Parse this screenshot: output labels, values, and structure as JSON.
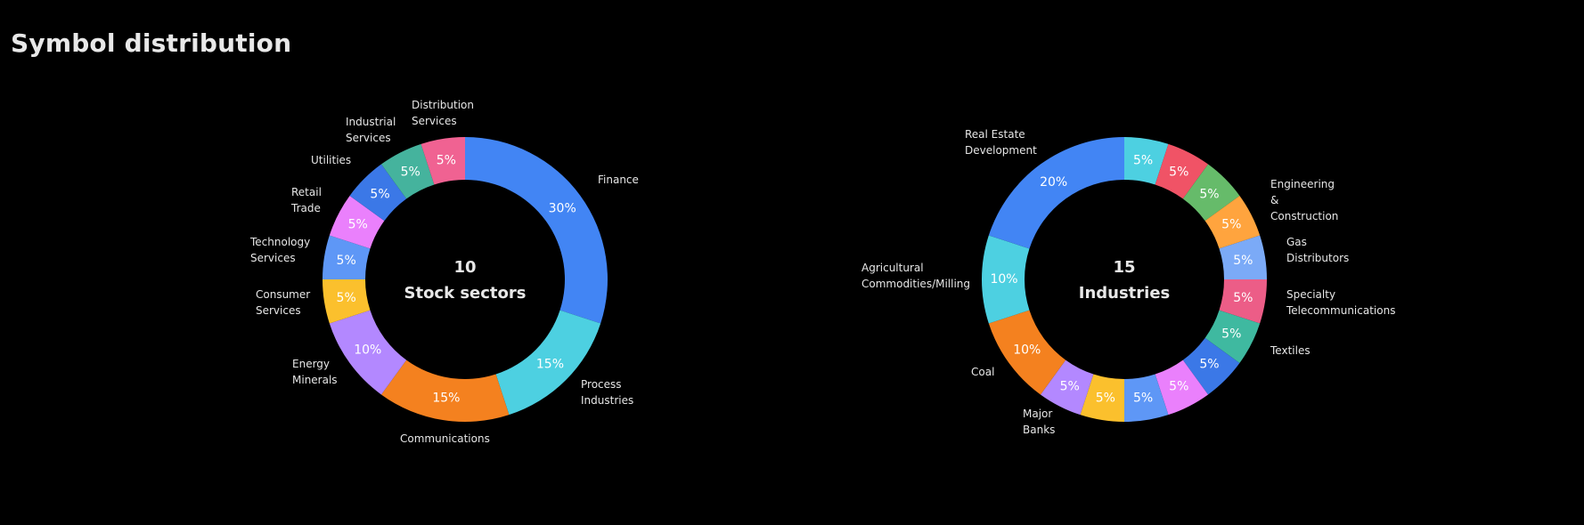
{
  "title": "Symbol distribution",
  "chart_data": [
    {
      "type": "pie",
      "center_count": "10",
      "center_label": "Stock sectors",
      "slices": [
        {
          "label": "Finance",
          "value": 30,
          "text": "30%",
          "color": "#4285f4"
        },
        {
          "label": "Process Industries",
          "value": 15,
          "text": "15%",
          "color": "#4dd0e1"
        },
        {
          "label": "Communications",
          "value": 15,
          "text": "15%",
          "color": "#f4811f"
        },
        {
          "label": "Energy Minerals",
          "value": 10,
          "text": "10%",
          "color": "#b388ff"
        },
        {
          "label": "Consumer Services",
          "value": 5,
          "text": "5%",
          "color": "#fbc02d"
        },
        {
          "label": "Technology Services",
          "value": 5,
          "text": "5%",
          "color": "#5e97f6"
        },
        {
          "label": "Retail Trade",
          "value": 5,
          "text": "5%",
          "color": "#ea80fc"
        },
        {
          "label": "Utilities",
          "value": 5,
          "text": "5%",
          "color": "#3b78e7"
        },
        {
          "label": "Industrial Services",
          "value": 5,
          "text": "5%",
          "color": "#45b39d"
        },
        {
          "label": "Distribution Services",
          "value": 5,
          "text": "5%",
          "color": "#f06292"
        }
      ]
    },
    {
      "type": "pie",
      "center_count": "15",
      "center_label": "Industries",
      "slices": [
        {
          "label": "",
          "value": 5,
          "text": "5%",
          "color": "#4dd0e1"
        },
        {
          "label": "",
          "value": 5,
          "text": "5%",
          "color": "#f05366"
        },
        {
          "label": "Engineering & Construction",
          "value": 5,
          "text": "5%",
          "color": "#66bb6a"
        },
        {
          "label": "",
          "value": 5,
          "text": "5%",
          "color": "#ffa43e"
        },
        {
          "label": "Gas Distributors",
          "value": 5,
          "text": "5%",
          "color": "#7baaf7"
        },
        {
          "label": "Specialty Telecommunications",
          "value": 5,
          "text": "5%",
          "color": "#ec5d87"
        },
        {
          "label": "Textiles",
          "value": 5,
          "text": "5%",
          "color": "#3fb9a0"
        },
        {
          "label": "",
          "value": 5,
          "text": "5%",
          "color": "#3b78e7"
        },
        {
          "label": "",
          "value": 5,
          "text": "5%",
          "color": "#ea80fc"
        },
        {
          "label": "",
          "value": 5,
          "text": "5%",
          "color": "#5e97f6"
        },
        {
          "label": "",
          "value": 5,
          "text": "5%",
          "color": "#fbc02d"
        },
        {
          "label": "Major Banks",
          "value": 5,
          "text": "5%",
          "color": "#b388ff"
        },
        {
          "label": "Coal",
          "value": 10,
          "text": "10%",
          "color": "#f4811f"
        },
        {
          "label": "Agricultural Commodities/Milling",
          "value": 10,
          "text": "10%",
          "color": "#4dd0e1"
        },
        {
          "label": "Real Estate Development",
          "value": 20,
          "text": "20%",
          "color": "#4285f4"
        }
      ]
    }
  ]
}
